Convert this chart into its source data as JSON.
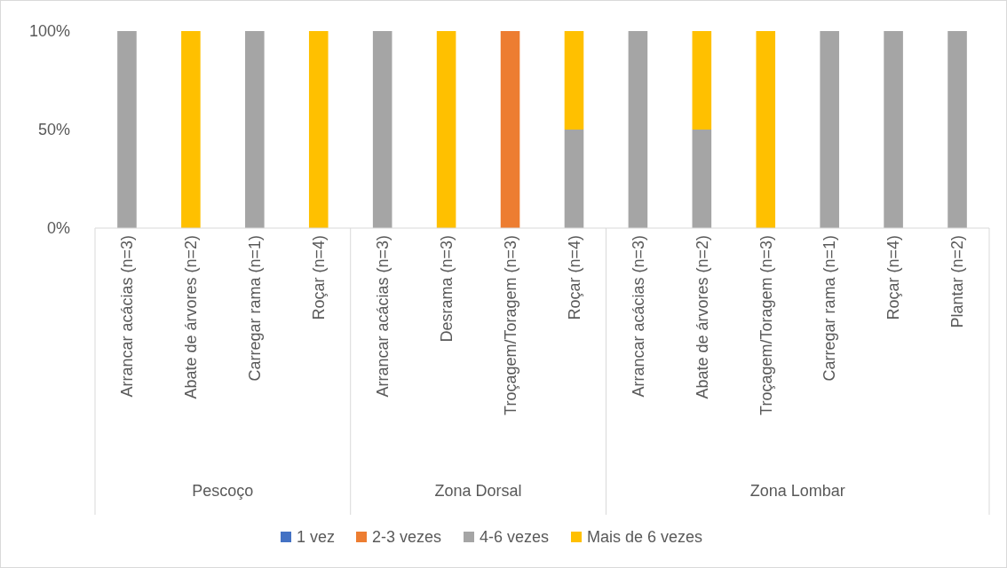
{
  "chart_data": {
    "type": "bar",
    "stacked": true,
    "categories": [
      "Arrancar acácias (n=3)",
      "Abate de árvores (n=2)",
      "Carregar rama (n=1)",
      "Roçar (n=4)",
      "Arrancar acácias (n=3)",
      "Desrama (n=3)",
      "Troçagem/Toragem (n=3)",
      "Roçar (n=4)",
      "Arrancar acácias (n=3)",
      "Abate de árvores (n=2)",
      "Troçagem/Toragem (n=3)",
      "Carregar rama (n=1)",
      "Roçar (n=4)",
      "Plantar (n=2)"
    ],
    "series": [
      {
        "name": "1 vez",
        "color": "#4472c4",
        "values": [
          0,
          0,
          0,
          0,
          0,
          0,
          0,
          0,
          0,
          0,
          0,
          0,
          0,
          0
        ]
      },
      {
        "name": "2-3 vezes",
        "color": "#ed7d31",
        "values": [
          0,
          0,
          0,
          0,
          0,
          0,
          100,
          0,
          0,
          0,
          0,
          0,
          0,
          0
        ]
      },
      {
        "name": "4-6 vezes",
        "color": "#a5a5a5",
        "values": [
          100,
          0,
          100,
          0,
          100,
          0,
          0,
          50,
          100,
          50,
          0,
          100,
          100,
          100
        ]
      },
      {
        "name": "Mais de 6 vezes",
        "color": "#ffc000",
        "values": [
          0,
          100,
          0,
          100,
          0,
          100,
          0,
          50,
          0,
          50,
          100,
          0,
          0,
          0
        ]
      }
    ],
    "ylim": [
      0,
      100
    ],
    "yticks": [
      {
        "value": 0,
        "label": "0%"
      },
      {
        "value": 50,
        "label": "50%"
      },
      {
        "value": 100,
        "label": "100%"
      }
    ],
    "annotations": [
      "Pescoço",
      "Zona Dorsal",
      "Zona Lombar"
    ],
    "legend": "bottom"
  }
}
